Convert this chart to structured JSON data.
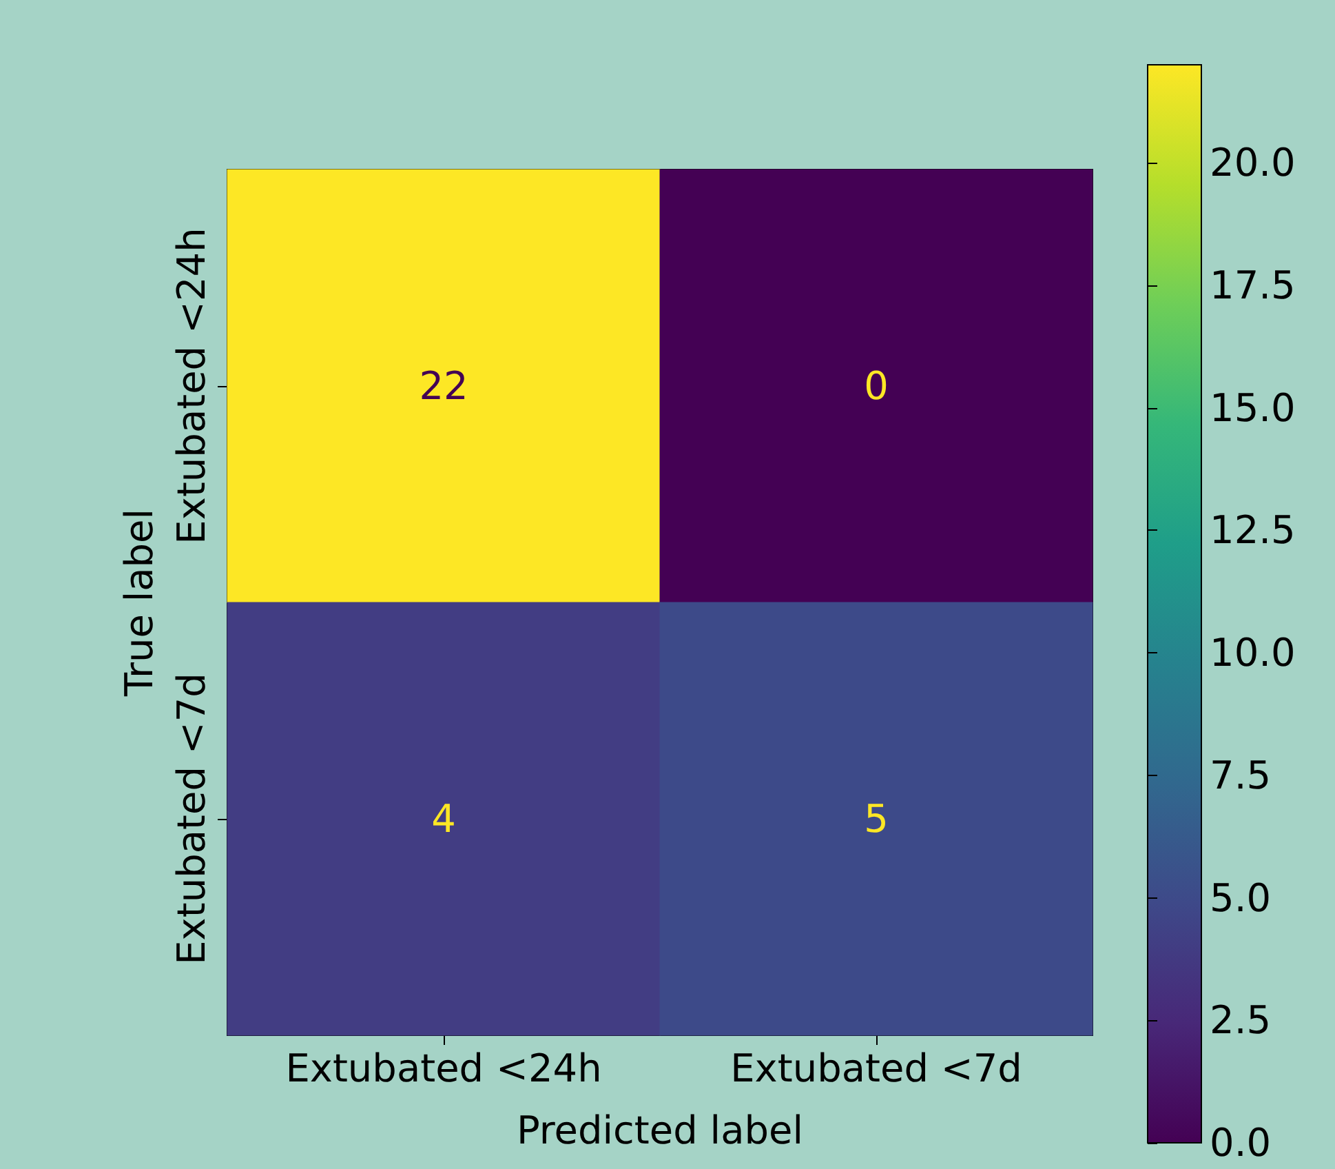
{
  "chart_data": {
    "type": "heatmap",
    "xlabel": "Predicted label",
    "ylabel": "True label",
    "categories": [
      "Extubated <24h",
      "Extubated <7d"
    ],
    "y_categories": [
      "Extubated <24h",
      "Extubated <7d"
    ],
    "cells": [
      [
        22,
        0
      ],
      [
        4,
        5
      ]
    ],
    "data_labels": true,
    "clim": [
      0,
      22
    ],
    "cticks": [
      {
        "value": 0,
        "label": "0.0"
      },
      {
        "value": 2.5,
        "label": "2.5"
      },
      {
        "value": 5,
        "label": "5.0"
      },
      {
        "value": 7.5,
        "label": "7.5"
      },
      {
        "value": 10,
        "label": "10.0"
      },
      {
        "value": 12.5,
        "label": "12.5"
      },
      {
        "value": 15,
        "label": "15.0"
      },
      {
        "value": 17.5,
        "label": "17.5"
      },
      {
        "value": 20,
        "label": "20.0"
      }
    ]
  }
}
